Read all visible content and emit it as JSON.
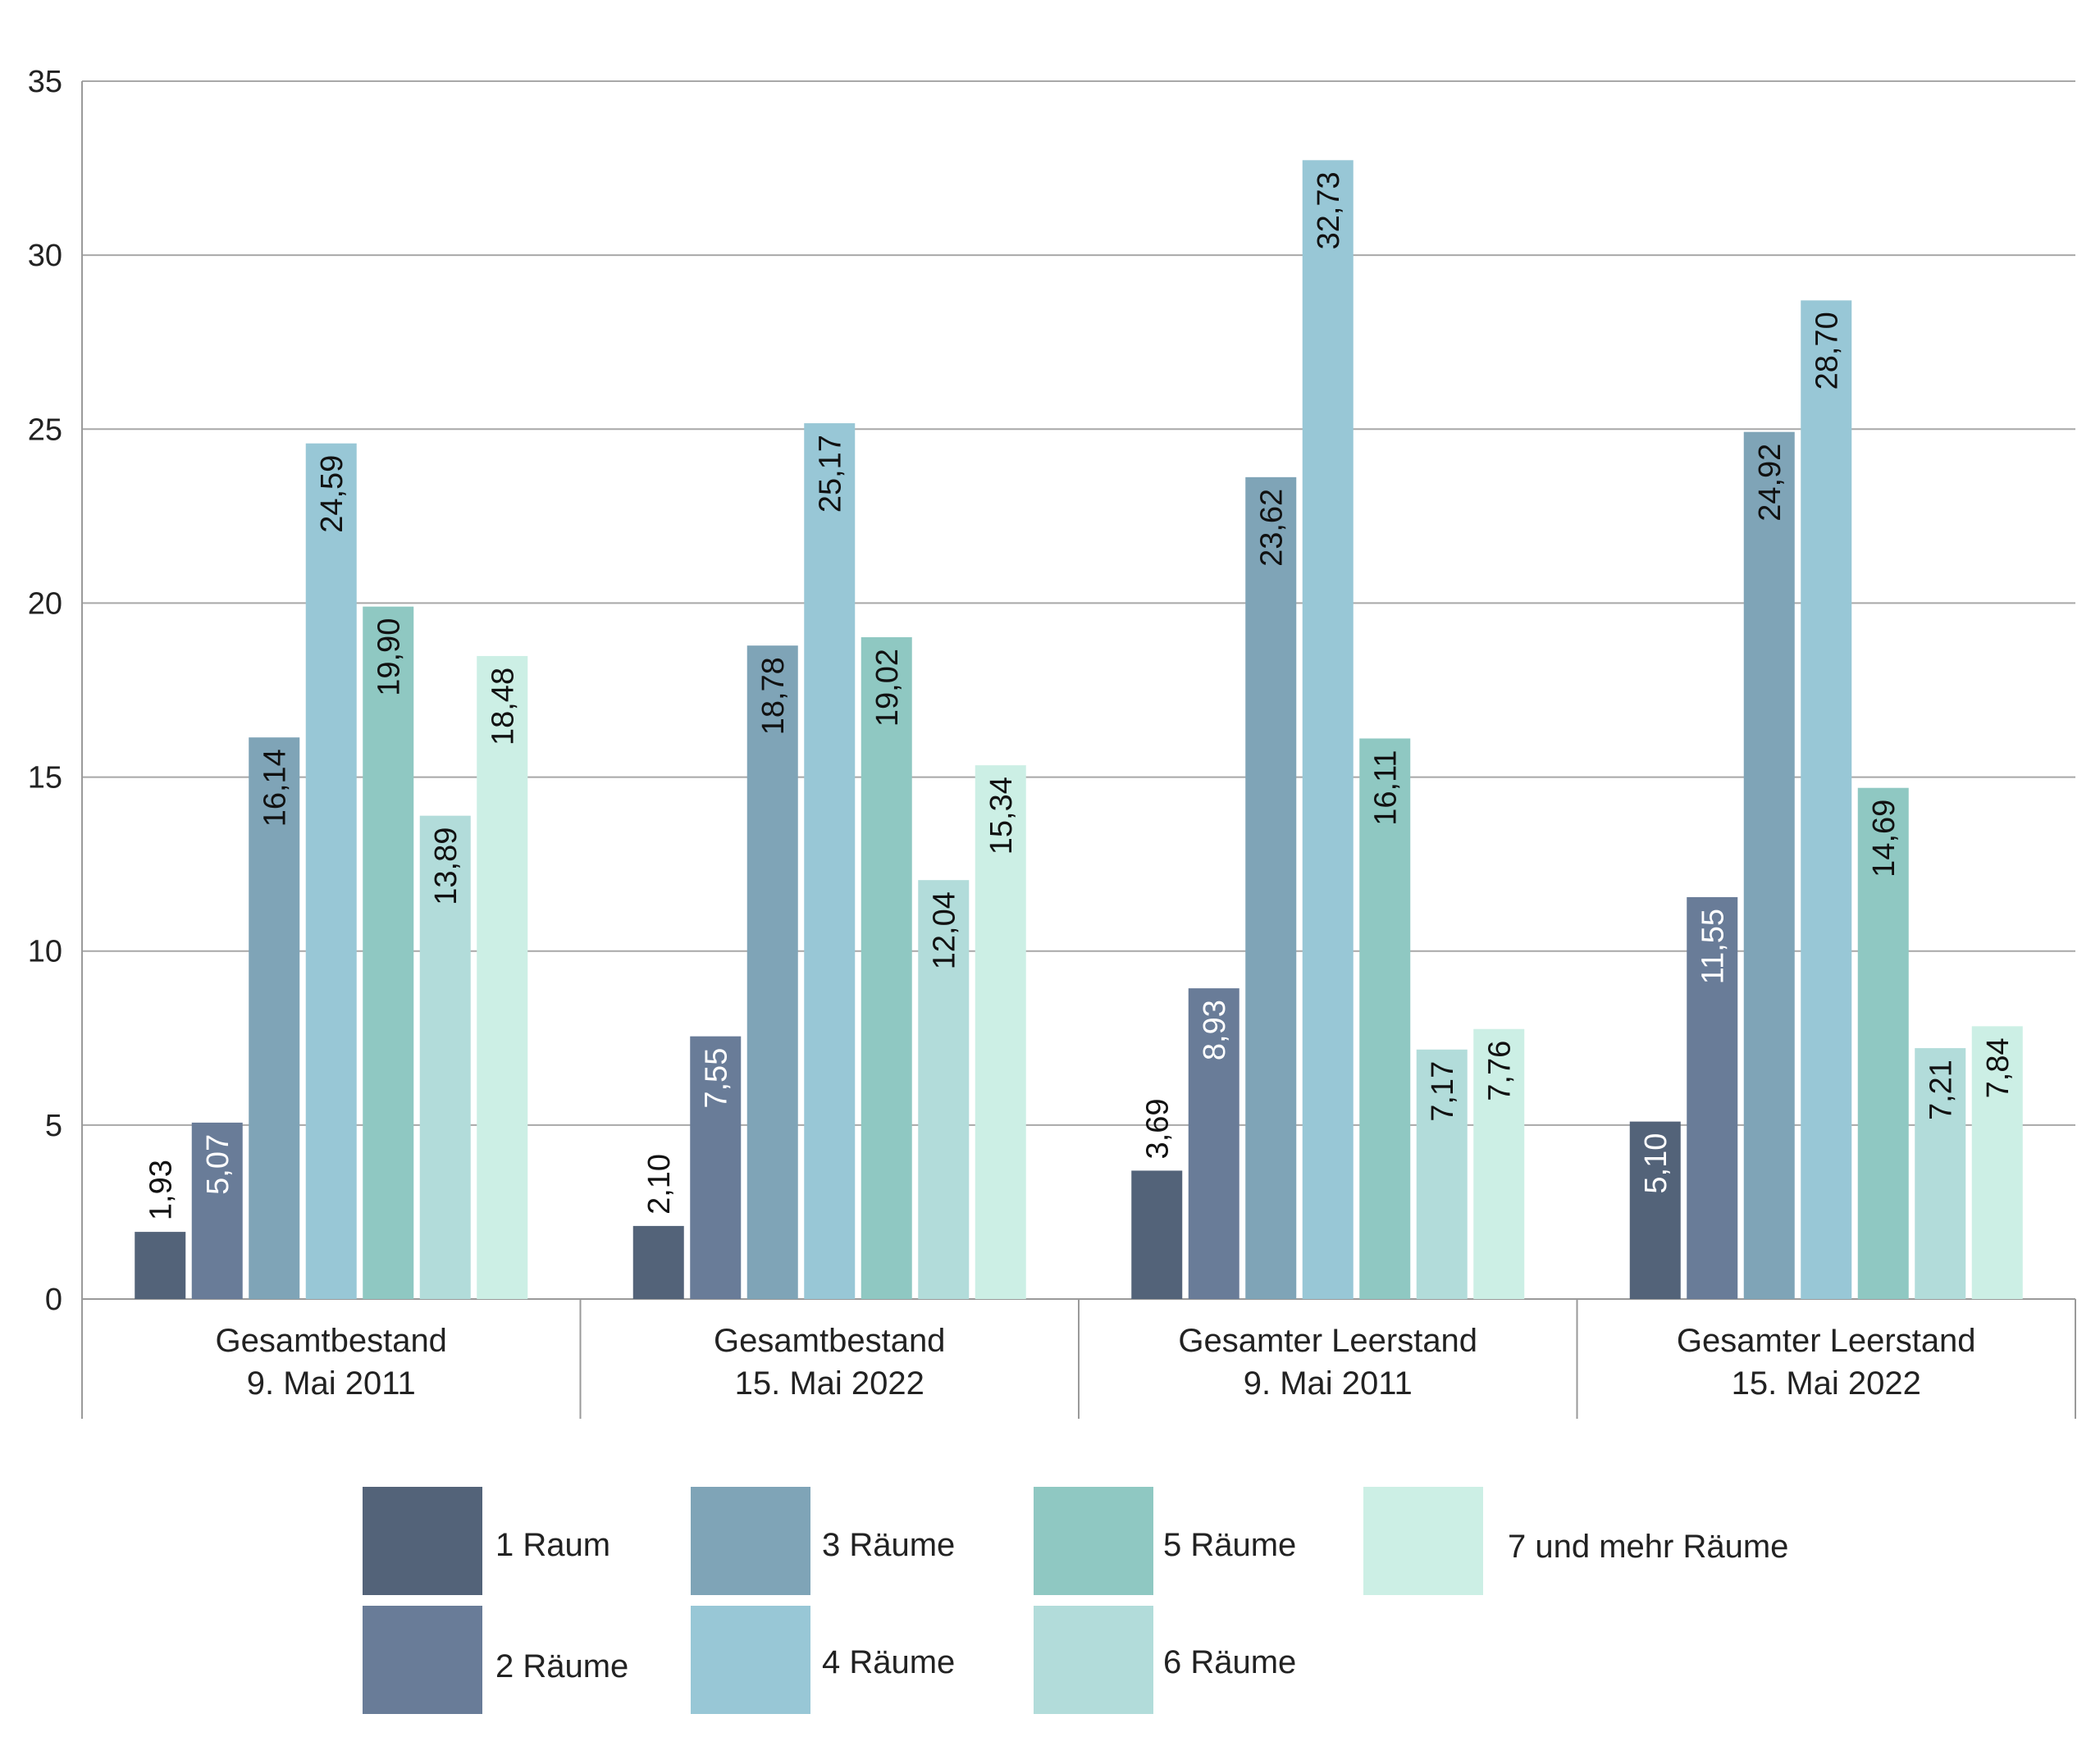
{
  "chart_data": {
    "type": "bar",
    "title": "",
    "xlabel": "",
    "ylabel": "",
    "ylim": [
      0,
      35
    ],
    "yticks": [
      "0",
      "5",
      "10",
      "15",
      "20",
      "25",
      "30",
      "35"
    ],
    "grid": true,
    "categories": [
      [
        "Gesamtbestand",
        "9. Mai 2011"
      ],
      [
        "Gesamtbestand",
        "15. Mai 2022"
      ],
      [
        "Gesamter Leerstand",
        "9. Mai 2011"
      ],
      [
        "Gesamter Leerstand",
        "15. Mai 2022"
      ]
    ],
    "series": [
      {
        "name": "1 Raum",
        "color": "#536379",
        "values": [
          1.93,
          2.1,
          3.69,
          5.1
        ],
        "labels": [
          "1,93",
          "2,10",
          "3,69",
          "5,10"
        ]
      },
      {
        "name": "2 Räume",
        "color": "#697c98",
        "values": [
          5.07,
          7.55,
          8.93,
          11.55
        ],
        "labels": [
          "5,07",
          "7,55",
          "8,93",
          "11,55"
        ]
      },
      {
        "name": "3 Räume",
        "color": "#7fa4b7",
        "values": [
          16.14,
          18.78,
          23.62,
          24.92
        ],
        "labels": [
          "16,14",
          "18,78",
          "23,62",
          "24,92"
        ]
      },
      {
        "name": "4 Räume",
        "color": "#98c7d6",
        "values": [
          24.59,
          25.17,
          32.73,
          28.7
        ],
        "labels": [
          "24,59",
          "25,17",
          "32,73",
          "28,70"
        ]
      },
      {
        "name": "5 Räume",
        "color": "#8fc8c2",
        "values": [
          19.9,
          19.02,
          16.11,
          14.69
        ],
        "labels": [
          "19,90",
          "19,02",
          "16,11",
          "14,69"
        ]
      },
      {
        "name": "6 Räume",
        "color": "#b2dcda",
        "values": [
          13.89,
          12.04,
          7.17,
          7.21
        ],
        "labels": [
          "13,89",
          "12,04",
          "7,17",
          "7,21"
        ]
      },
      {
        "name": "7 und mehr Räume",
        "color": "#ccefe5",
        "values": [
          18.48,
          15.34,
          7.76,
          7.84
        ],
        "labels": [
          "18,48",
          "15,34",
          "7,76",
          "7,84"
        ]
      }
    ],
    "label_colors": {
      "inside_dark": "#ffffff",
      "default": "#111111"
    }
  }
}
